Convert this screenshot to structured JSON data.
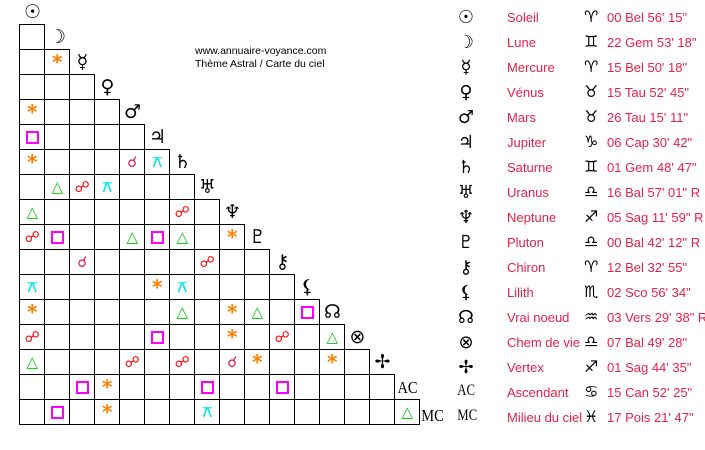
{
  "header": {
    "site": "www.annuaire-voyance.com",
    "subtitle": "Thème Astral / Carte du ciel"
  },
  "aspect_styles": {
    "conjunction": {
      "glyph": "☌",
      "color": "#e8204a",
      "icon": "conjunction-icon"
    },
    "sextile": {
      "glyph": "*",
      "color": "#ff8000",
      "icon": "sextile-icon"
    },
    "square": {
      "glyph": "",
      "color": "#ff00ff",
      "icon": "square-icon"
    },
    "trine": {
      "glyph": "△",
      "color": "#00cc00",
      "icon": "trine-icon"
    },
    "opposition": {
      "glyph": "☍",
      "color": "#ff0000",
      "icon": "opposition-icon"
    },
    "quincunx": {
      "glyph": "⚻",
      "color": "#00e5e5",
      "icon": "quincunx-icon"
    }
  },
  "planets": [
    {
      "name": "Soleil",
      "symbol": "☉",
      "icon": "sun-icon",
      "sign": "♈",
      "sign_icon": "aries-icon",
      "position": "00 Bel 56' 15\""
    },
    {
      "name": "Lune",
      "symbol": "☽",
      "icon": "moon-icon",
      "sign": "♊",
      "sign_icon": "gemini-icon",
      "position": "22 Gem 53' 18\""
    },
    {
      "name": "Mercure",
      "symbol": "☿",
      "icon": "mercury-icon",
      "sign": "♈",
      "sign_icon": "aries-icon",
      "position": "15 Bel 50' 18\""
    },
    {
      "name": "Vénus",
      "symbol": "♀",
      "icon": "venus-icon",
      "sign": "♉",
      "sign_icon": "taurus-icon",
      "position": "15 Tau 52' 45\""
    },
    {
      "name": "Mars",
      "symbol": "♂",
      "icon": "mars-icon",
      "sign": "♉",
      "sign_icon": "taurus-icon",
      "position": "26 Tau 15' 11\""
    },
    {
      "name": "Jupiter",
      "symbol": "♃",
      "icon": "jupiter-icon",
      "sign": "♑",
      "sign_icon": "capricorn-icon",
      "position": "06 Cap 30' 42\""
    },
    {
      "name": "Saturne",
      "symbol": "♄",
      "icon": "saturn-icon",
      "sign": "♊",
      "sign_icon": "gemini-icon",
      "position": "01 Gem 48' 47\""
    },
    {
      "name": "Uranus",
      "symbol": "♅",
      "icon": "uranus-icon",
      "sign": "♎",
      "sign_icon": "libra-icon",
      "position": "16 Bal 57' 01\" R"
    },
    {
      "name": "Neptune",
      "symbol": "♆",
      "icon": "neptune-icon",
      "sign": "♐",
      "sign_icon": "sagittarius-icon",
      "position": "05 Sag 11' 59\" R"
    },
    {
      "name": "Pluton",
      "symbol": "♇",
      "icon": "pluto-icon",
      "sign": "♎",
      "sign_icon": "libra-icon",
      "position": "00 Bal 42' 12\" R"
    },
    {
      "name": "Chiron",
      "symbol": "⚷",
      "icon": "chiron-icon",
      "sign": "♈",
      "sign_icon": "aries-icon",
      "position": "12 Bel 32' 55\""
    },
    {
      "name": "Lilith",
      "symbol": "⚸",
      "icon": "lilith-icon",
      "sign": "♏",
      "sign_icon": "scorpio-icon",
      "position": "02 Sco 56' 34\""
    },
    {
      "name": "Vrai noeud",
      "symbol": "☊",
      "icon": "north-node-icon",
      "sign": "♒",
      "sign_icon": "aquarius-icon",
      "position": "03 Vers 29' 38\" R"
    },
    {
      "name": "Chem de vie",
      "symbol": "⊗",
      "icon": "part-of-fortune-icon",
      "sign": "♎",
      "sign_icon": "libra-icon",
      "position": "07 Bal 49' 28\""
    },
    {
      "name": "Vertex",
      "symbol": "✢",
      "icon": "vertex-icon",
      "sign": "♐",
      "sign_icon": "sagittarius-icon",
      "position": "01 Sag 44' 35\""
    },
    {
      "name": "Ascendant",
      "symbol": "AC",
      "icon": "ascendant-icon",
      "sign": "♋",
      "sign_icon": "cancer-icon",
      "position": "15 Can 52' 25\""
    },
    {
      "name": "Milieu du ciel",
      "symbol": "MC",
      "icon": "midheaven-icon",
      "sign": "♓",
      "sign_icon": "pisces-icon",
      "position": "17 Pois 21' 47\""
    }
  ],
  "aspects": [
    {
      "a": "Mercure",
      "b": "Lune",
      "type": "sextile"
    },
    {
      "a": "Mars",
      "b": "Soleil",
      "type": "sextile"
    },
    {
      "a": "Jupiter",
      "b": "Soleil",
      "type": "square"
    },
    {
      "a": "Saturne",
      "b": "Soleil",
      "type": "sextile"
    },
    {
      "a": "Saturne",
      "b": "Mars",
      "type": "conjunction"
    },
    {
      "a": "Saturne",
      "b": "Jupiter",
      "type": "quincunx"
    },
    {
      "a": "Uranus",
      "b": "Lune",
      "type": "trine"
    },
    {
      "a": "Uranus",
      "b": "Mercure",
      "type": "opposition"
    },
    {
      "a": "Uranus",
      "b": "Vénus",
      "type": "quincunx"
    },
    {
      "a": "Neptune",
      "b": "Soleil",
      "type": "trine"
    },
    {
      "a": "Neptune",
      "b": "Saturne",
      "type": "opposition"
    },
    {
      "a": "Pluton",
      "b": "Soleil",
      "type": "opposition"
    },
    {
      "a": "Pluton",
      "b": "Lune",
      "type": "square"
    },
    {
      "a": "Pluton",
      "b": "Mars",
      "type": "trine"
    },
    {
      "a": "Pluton",
      "b": "Jupiter",
      "type": "square"
    },
    {
      "a": "Pluton",
      "b": "Saturne",
      "type": "trine"
    },
    {
      "a": "Pluton",
      "b": "Neptune",
      "type": "sextile"
    },
    {
      "a": "Chiron",
      "b": "Mercure",
      "type": "conjunction"
    },
    {
      "a": "Chiron",
      "b": "Uranus",
      "type": "opposition"
    },
    {
      "a": "Lilith",
      "b": "Soleil",
      "type": "quincunx"
    },
    {
      "a": "Lilith",
      "b": "Jupiter",
      "type": "sextile"
    },
    {
      "a": "Lilith",
      "b": "Saturne",
      "type": "quincunx"
    },
    {
      "a": "Vrai noeud",
      "b": "Soleil",
      "type": "sextile"
    },
    {
      "a": "Vrai noeud",
      "b": "Saturne",
      "type": "trine"
    },
    {
      "a": "Vrai noeud",
      "b": "Neptune",
      "type": "sextile"
    },
    {
      "a": "Vrai noeud",
      "b": "Pluton",
      "type": "trine"
    },
    {
      "a": "Vrai noeud",
      "b": "Lilith",
      "type": "square"
    },
    {
      "a": "Chem de vie",
      "b": "Soleil",
      "type": "opposition"
    },
    {
      "a": "Chem de vie",
      "b": "Jupiter",
      "type": "square"
    },
    {
      "a": "Chem de vie",
      "b": "Neptune",
      "type": "sextile"
    },
    {
      "a": "Chem de vie",
      "b": "Chiron",
      "type": "opposition"
    },
    {
      "a": "Chem de vie",
      "b": "Vrai noeud",
      "type": "trine"
    },
    {
      "a": "Vertex",
      "b": "Soleil",
      "type": "trine"
    },
    {
      "a": "Vertex",
      "b": "Mars",
      "type": "opposition"
    },
    {
      "a": "Vertex",
      "b": "Saturne",
      "type": "opposition"
    },
    {
      "a": "Vertex",
      "b": "Neptune",
      "type": "conjunction"
    },
    {
      "a": "Vertex",
      "b": "Pluton",
      "type": "sextile"
    },
    {
      "a": "Vertex",
      "b": "Vrai noeud",
      "type": "sextile"
    },
    {
      "a": "Ascendant",
      "b": "Mercure",
      "type": "square"
    },
    {
      "a": "Ascendant",
      "b": "Vénus",
      "type": "sextile"
    },
    {
      "a": "Ascendant",
      "b": "Uranus",
      "type": "square"
    },
    {
      "a": "Ascendant",
      "b": "Chiron",
      "type": "square"
    },
    {
      "a": "Milieu du ciel",
      "b": "Lune",
      "type": "square"
    },
    {
      "a": "Milieu du ciel",
      "b": "Vénus",
      "type": "sextile"
    },
    {
      "a": "Milieu du ciel",
      "b": "Uranus",
      "type": "quincunx"
    },
    {
      "a": "Milieu du ciel",
      "b": "Ascendant",
      "type": "trine"
    }
  ]
}
